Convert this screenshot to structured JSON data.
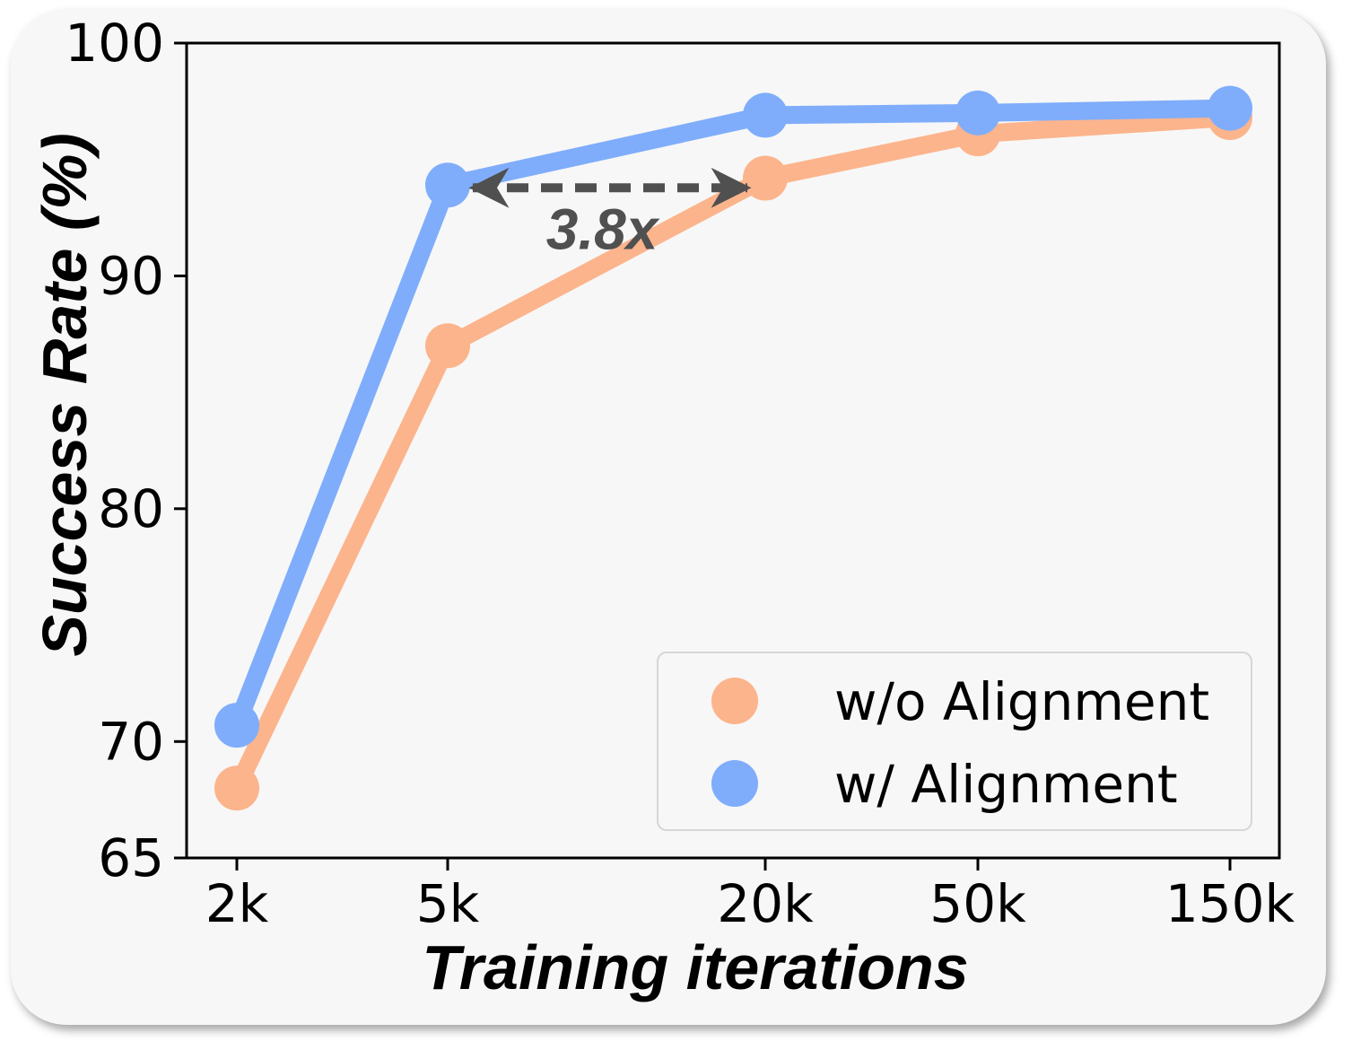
{
  "chart_data": {
    "type": "line",
    "categories": [
      "2k",
      "5k",
      "20k",
      "50k",
      "150k"
    ],
    "series": [
      {
        "name": "w/o Alignment",
        "color": "#fcb48c",
        "values": [
          68.0,
          87.0,
          94.2,
          96.1,
          96.8
        ]
      },
      {
        "name": "w/ Alignment",
        "color": "#7fadfb",
        "values": [
          70.7,
          93.9,
          96.9,
          97.0,
          97.2
        ]
      }
    ],
    "xlabel": "Training iterations",
    "ylabel": "Success Rate (%)",
    "ylim": [
      65,
      100
    ],
    "yticks": [
      65,
      70,
      80,
      90,
      100
    ],
    "legend": {
      "placement": "lower-right"
    },
    "annotation": {
      "text": "3.8x",
      "from_category": "5k",
      "to_category": "20k",
      "y": 93.9,
      "color": "#505050"
    },
    "grid": false
  }
}
